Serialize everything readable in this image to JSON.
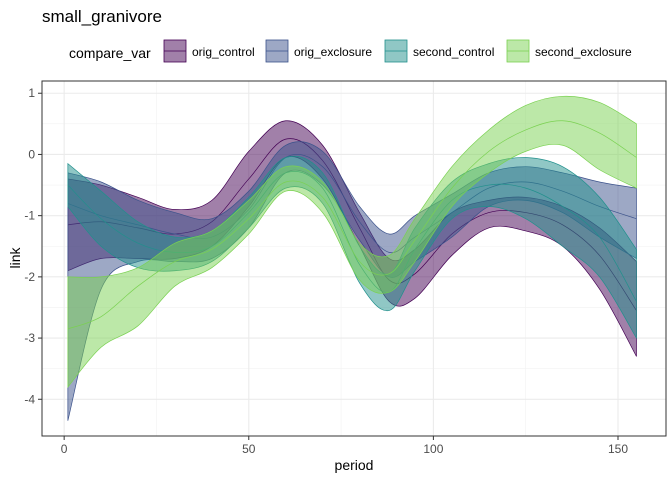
{
  "chart_data": {
    "type": "area",
    "subtype": "ribbon",
    "title": "small_granivore",
    "xlabel": "period",
    "ylabel": "link",
    "xlim": [
      -6,
      163
    ],
    "ylim": [
      -4.6,
      1.2
    ],
    "x_ticks": [
      0,
      50,
      100,
      150
    ],
    "x_tick_labels": [
      "0",
      "50",
      "100",
      "150"
    ],
    "y_ticks": [
      -4,
      -3,
      -2,
      -1,
      0,
      1
    ],
    "y_tick_labels": [
      "-4",
      "-3",
      "-2",
      "-1",
      "0",
      "1"
    ],
    "grid": true,
    "legend": {
      "title": "compare_var",
      "position": "top"
    },
    "x": [
      1,
      10,
      20,
      30,
      40,
      50,
      60,
      70,
      80,
      88,
      95,
      105,
      115,
      125,
      135,
      145,
      155
    ],
    "series": [
      {
        "name": "orig_control",
        "color": "#440154",
        "mid": [
          -1.15,
          -1.1,
          -1.2,
          -1.3,
          -1.1,
          -0.4,
          0.25,
          -0.1,
          -1.2,
          -2.05,
          -1.95,
          -1.3,
          -0.95,
          -0.95,
          -1.15,
          -1.65,
          -2.55
        ],
        "upper": [
          -0.4,
          -0.5,
          -0.7,
          -0.9,
          -0.75,
          0.05,
          0.55,
          0.15,
          -0.95,
          -1.7,
          -1.55,
          -0.95,
          -0.75,
          -0.7,
          -0.85,
          -1.2,
          -1.75
        ],
        "lower": [
          -1.9,
          -1.7,
          -1.7,
          -1.7,
          -1.5,
          -0.85,
          -0.05,
          -0.4,
          -1.5,
          -2.4,
          -2.35,
          -1.65,
          -1.2,
          -1.25,
          -1.5,
          -2.2,
          -3.3
        ]
      },
      {
        "name": "orig_exclosure",
        "color": "#3B528B",
        "mid": [
          -0.8,
          -1.0,
          -1.15,
          -1.3,
          -1.35,
          -0.9,
          -0.05,
          -0.2,
          -1.1,
          -1.6,
          -1.35,
          -0.95,
          -0.55,
          -0.45,
          -0.6,
          -0.85,
          -1.05
        ],
        "upper": [
          -0.3,
          -0.45,
          -0.75,
          -0.95,
          -1.05,
          -0.6,
          0.15,
          0.05,
          -0.85,
          -1.3,
          -1.0,
          -0.65,
          -0.3,
          -0.2,
          -0.3,
          -0.45,
          -0.55
        ],
        "lower": [
          -4.35,
          -2.2,
          -1.75,
          -1.75,
          -1.7,
          -1.2,
          -0.3,
          -0.5,
          -1.4,
          -2.0,
          -1.75,
          -1.35,
          -0.85,
          -0.75,
          -0.95,
          -1.35,
          -1.7
        ]
      },
      {
        "name": "second_control",
        "color": "#21908C",
        "mid": [
          -0.5,
          -1.05,
          -1.45,
          -1.6,
          -1.5,
          -0.95,
          -0.3,
          -0.55,
          -1.8,
          -2.25,
          -1.55,
          -0.75,
          -0.5,
          -0.55,
          -0.85,
          -1.35,
          -2.4
        ],
        "upper": [
          -0.15,
          -0.6,
          -1.1,
          -1.35,
          -1.25,
          -0.7,
          -0.05,
          -0.3,
          -1.5,
          -1.95,
          -1.2,
          -0.45,
          -0.15,
          -0.05,
          -0.2,
          -0.7,
          -1.55
        ],
        "lower": [
          -0.85,
          -1.5,
          -1.85,
          -1.9,
          -1.75,
          -1.2,
          -0.55,
          -0.8,
          -2.1,
          -2.55,
          -1.9,
          -1.05,
          -0.85,
          -1.05,
          -1.5,
          -2.0,
          -3.0
        ]
      },
      {
        "name": "second_exclosure",
        "color": "#7AD151",
        "mid": [
          -2.85,
          -2.65,
          -2.15,
          -1.75,
          -1.55,
          -1.05,
          -0.45,
          -0.7,
          -1.75,
          -1.95,
          -1.4,
          -0.55,
          0.05,
          0.4,
          0.55,
          0.35,
          -0.05
        ],
        "upper": [
          -2.0,
          -2.0,
          -1.85,
          -1.45,
          -1.25,
          -0.75,
          -0.2,
          -0.45,
          -1.45,
          -1.65,
          -1.05,
          -0.2,
          0.4,
          0.8,
          0.95,
          0.85,
          0.5
        ],
        "lower": [
          -3.8,
          -3.15,
          -2.8,
          -2.15,
          -1.85,
          -1.3,
          -0.6,
          -0.95,
          -2.05,
          -2.25,
          -1.75,
          -0.85,
          -0.3,
          0.05,
          0.15,
          -0.25,
          -0.55
        ]
      }
    ]
  }
}
